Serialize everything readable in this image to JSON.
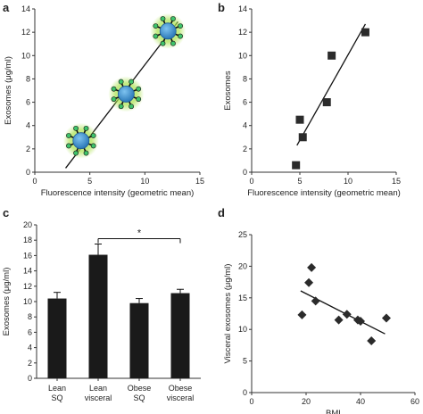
{
  "colors": {
    "ink": "#111111",
    "bar": "#1a1a1a",
    "marker": "#2b2b2b",
    "exosome_core": "#3b8fd0",
    "exosome_glow": "#9be04a",
    "exosome_dot": "#3ec36a"
  },
  "panels": [
    {
      "letter": "a",
      "chart_data": {
        "type": "scatter",
        "marker": "exosome-icon",
        "xlabel": "Fluorescence intensity (geometric mean)",
        "ylabel": "Exosomes (μg/ml)",
        "xlim": [
          0,
          15
        ],
        "ylim": [
          0,
          14
        ],
        "xticks": [
          "0",
          "5",
          "10",
          "15"
        ],
        "yticks": [
          "0",
          "2",
          "4",
          "6",
          "8",
          "10",
          "12",
          "14"
        ],
        "points": [
          {
            "x": 4.2,
            "y": 2.7
          },
          {
            "x": 8.3,
            "y": 6.7
          },
          {
            "x": 12.1,
            "y": 12.1
          }
        ],
        "fit_line": [
          {
            "x": 2.8,
            "y": 0.35
          },
          {
            "x": 13.0,
            "y": 12.9
          }
        ],
        "grid": false
      }
    },
    {
      "letter": "b",
      "chart_data": {
        "type": "scatter",
        "marker": "square",
        "xlabel": "Fluorescence intensity (geometric mean)",
        "ylabel": "Exosomes",
        "xlim": [
          0,
          15
        ],
        "ylim": [
          0,
          14
        ],
        "xticks": [
          "0",
          "5",
          "10",
          "15"
        ],
        "yticks": [
          "0",
          "2",
          "4",
          "6",
          "8",
          "10",
          "12",
          "14"
        ],
        "points": [
          {
            "x": 4.6,
            "y": 0.6
          },
          {
            "x": 5.0,
            "y": 4.5
          },
          {
            "x": 5.3,
            "y": 3.0
          },
          {
            "x": 7.8,
            "y": 6.0
          },
          {
            "x": 8.3,
            "y": 10.0
          },
          {
            "x": 11.8,
            "y": 12.0
          }
        ],
        "fit_line": [
          {
            "x": 4.7,
            "y": 2.3
          },
          {
            "x": 11.8,
            "y": 12.7
          }
        ],
        "grid": false
      }
    },
    {
      "letter": "c",
      "chart_data": {
        "type": "bar",
        "ylabel": "Exosomes (μg/ml)",
        "ylim": [
          0,
          20
        ],
        "yticks": [
          "0",
          "2",
          "4",
          "6",
          "8",
          "10",
          "12",
          "14",
          "16",
          "18",
          "20"
        ],
        "categories": [
          {
            "line1": "Lean",
            "line2": "SQ"
          },
          {
            "line1": "Lean",
            "line2": "visceral"
          },
          {
            "line1": "Obese",
            "line2": "SQ"
          },
          {
            "line1": "Obese",
            "line2": "visceral"
          }
        ],
        "values": [
          10.4,
          16.1,
          9.8,
          11.1
        ],
        "errors": [
          0.8,
          1.4,
          0.6,
          0.5
        ],
        "significance": {
          "from": 1,
          "to": 3,
          "label": "*",
          "y": 18.2
        },
        "grid": false
      }
    },
    {
      "letter": "d",
      "chart_data": {
        "type": "scatter",
        "marker": "diamond",
        "xlabel": "BMI",
        "ylabel": "Visceral exosomes (μg/ml)",
        "xlim": [
          0,
          60
        ],
        "ylim": [
          0,
          25
        ],
        "xticks": [
          "0",
          "20",
          "40",
          "60"
        ],
        "yticks": [
          "0",
          "5",
          "10",
          "15",
          "20",
          "25"
        ],
        "points": [
          {
            "x": 18.5,
            "y": 12.3
          },
          {
            "x": 21.0,
            "y": 17.4
          },
          {
            "x": 22.0,
            "y": 19.8
          },
          {
            "x": 23.5,
            "y": 14.5
          },
          {
            "x": 32.0,
            "y": 11.5
          },
          {
            "x": 35.0,
            "y": 12.4
          },
          {
            "x": 39.0,
            "y": 11.5
          },
          {
            "x": 40.0,
            "y": 11.3
          },
          {
            "x": 44.0,
            "y": 8.2
          },
          {
            "x": 49.5,
            "y": 11.8
          }
        ],
        "fit_line": [
          {
            "x": 18.0,
            "y": 16.1
          },
          {
            "x": 49.0,
            "y": 9.3
          }
        ],
        "grid": false
      }
    }
  ]
}
